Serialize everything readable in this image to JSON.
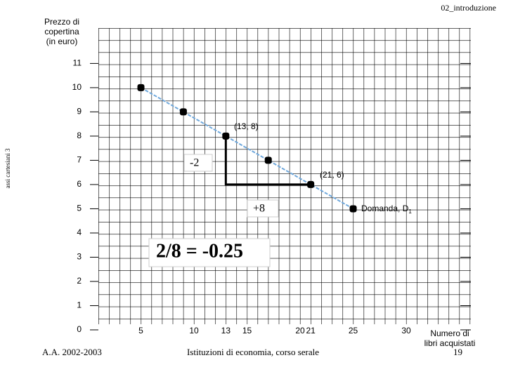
{
  "header": "02_introduzione",
  "side_label": "assi cartesiani 3",
  "chart_data": {
    "type": "line",
    "y_label": [
      "Prezzo di",
      "copertina",
      "(in euro)"
    ],
    "x_label": [
      "Numero di",
      "libri acquistati"
    ],
    "series": [
      {
        "name": "Domanda",
        "color": "#6fa8dc",
        "x": [
          5,
          9,
          13,
          17,
          21,
          25
        ],
        "values": [
          10,
          9,
          8,
          7,
          6,
          5
        ]
      }
    ],
    "xlim": [
      0,
      36.75
    ],
    "ylim": [
      0,
      12.46
    ],
    "xticks": [
      5,
      10,
      13,
      15,
      20,
      21,
      25,
      30
    ],
    "yticks": [
      0,
      1,
      2,
      3,
      4,
      5,
      6,
      7,
      8,
      9,
      10,
      11
    ],
    "annotations": {
      "point_a": "(13, 8)",
      "point_b": "(21, 6)",
      "rise": "-2",
      "run": "+8",
      "slope": "2/8 = -0.25",
      "curve": "Domanda, D",
      "curve_sub": "1"
    }
  },
  "footer": {
    "left": "A.A. 2002-2003",
    "center": "Istituzioni di economia, corso serale",
    "page": "19"
  }
}
